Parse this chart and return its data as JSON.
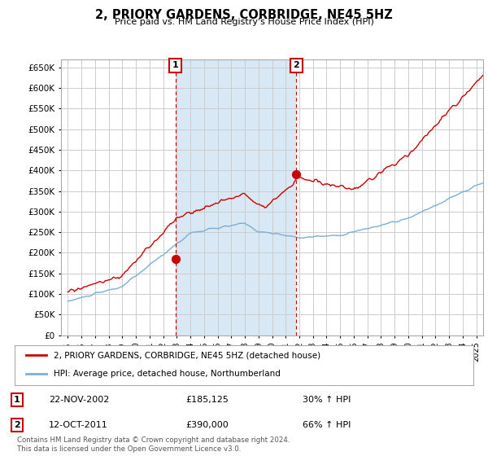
{
  "title": "2, PRIORY GARDENS, CORBRIDGE, NE45 5HZ",
  "subtitle": "Price paid vs. HM Land Registry's House Price Index (HPI)",
  "ylim": [
    0,
    670000
  ],
  "yticks": [
    0,
    50000,
    100000,
    150000,
    200000,
    250000,
    300000,
    350000,
    400000,
    450000,
    500000,
    550000,
    600000,
    650000
  ],
  "background_color": "#ffffff",
  "plot_bg_color": "#ffffff",
  "shade_color": "#d8e8f4",
  "grid_color": "#cccccc",
  "purchase1": {
    "date_num": 2002.9,
    "price": 185125,
    "label": "1",
    "date_str": "22-NOV-2002",
    "pct": "30% ↑ HPI"
  },
  "purchase2": {
    "date_num": 2011.78,
    "price": 390000,
    "label": "2",
    "date_str": "12-OCT-2011",
    "pct": "66% ↑ HPI"
  },
  "legend_line1": "2, PRIORY GARDENS, CORBRIDGE, NE45 5HZ (detached house)",
  "legend_line2": "HPI: Average price, detached house, Northumberland",
  "footer": "Contains HM Land Registry data © Crown copyright and database right 2024.\nThis data is licensed under the Open Government Licence v3.0.",
  "hpi_color": "#7bafd4",
  "property_color": "#cc0000",
  "vline_color": "#cc0000",
  "xmin": 1994.5,
  "xmax": 2025.5
}
